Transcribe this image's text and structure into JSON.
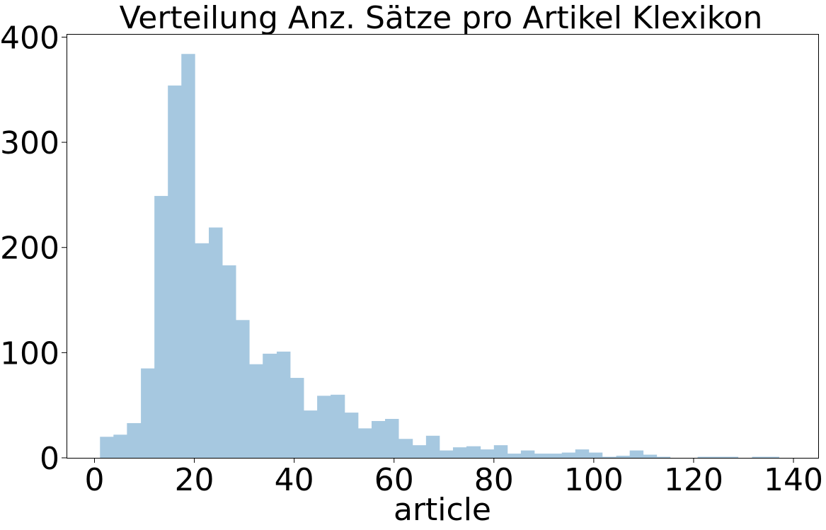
{
  "chart_data": {
    "type": "bar",
    "title": "Verteilung Anz. Sätze pro Artikel Klexikon",
    "xlabel": "article",
    "ylabel": "",
    "xlim": [
      -5.6,
      145.1
    ],
    "ylim": [
      0,
      403
    ],
    "xticks": [
      0,
      20,
      40,
      60,
      80,
      100,
      120,
      140
    ],
    "yticks": [
      0,
      100,
      200,
      300,
      400
    ],
    "grid": false,
    "bin_edges": [
      1.1,
      3.8,
      6.5,
      9.3,
      12.0,
      14.7,
      17.4,
      20.1,
      22.9,
      25.6,
      28.3,
      31.0,
      33.7,
      36.5,
      39.2,
      41.9,
      44.6,
      47.3,
      50.1,
      52.8,
      55.5,
      58.2,
      60.9,
      63.7,
      66.4,
      69.1,
      71.8,
      74.5,
      77.3,
      80.0,
      82.7,
      85.4,
      88.1,
      90.9,
      93.6,
      96.3,
      99.0,
      101.7,
      104.5,
      107.2,
      109.9,
      112.6,
      115.3,
      118.1,
      120.8,
      123.5,
      126.2,
      128.9,
      131.7,
      134.4,
      137.1
    ],
    "counts": [
      20,
      22,
      33,
      85,
      249,
      354,
      384,
      204,
      219,
      183,
      131,
      89,
      99,
      101,
      76,
      45,
      59,
      60,
      43,
      28,
      35,
      37,
      18,
      12,
      21,
      7,
      10,
      11,
      8,
      12,
      4,
      7,
      4,
      4,
      5,
      8,
      5,
      1,
      2,
      7,
      3,
      1,
      0,
      0,
      1,
      1,
      1,
      0,
      1,
      1
    ]
  }
}
